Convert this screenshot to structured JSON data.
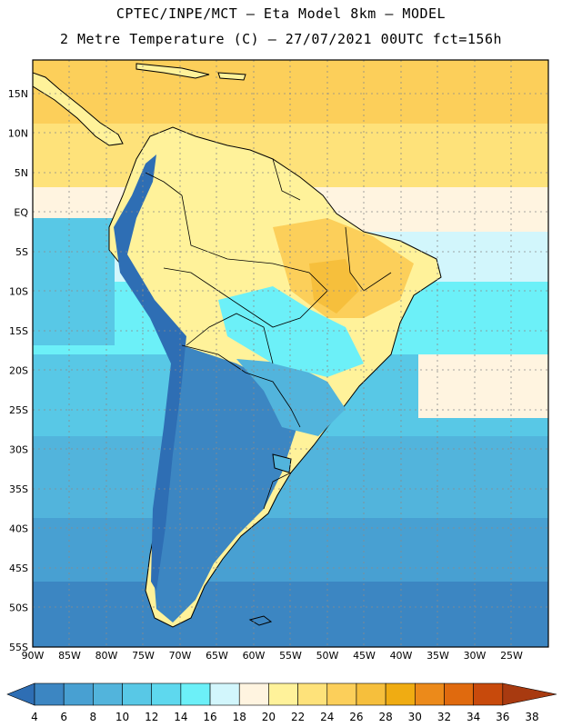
{
  "header": {
    "line1": "CPTEC/INPE/MCT –  Eta Model 8km – MODEL",
    "line2": "2 Metre Temperature (C) – 27/07/2021 00UTC fct=156h"
  },
  "axes": {
    "lat_labels": [
      "15N",
      "10N",
      "5N",
      "EQ",
      "5S",
      "10S",
      "15S",
      "20S",
      "25S",
      "30S",
      "35S",
      "40S",
      "45S",
      "50S",
      "55S"
    ],
    "lon_labels": [
      "90W",
      "85W",
      "80W",
      "75W",
      "70W",
      "65W",
      "60W",
      "55W",
      "50W",
      "45W",
      "40W",
      "35W",
      "30W",
      "25W"
    ]
  },
  "colorbar": {
    "ticks": [
      "4",
      "6",
      "8",
      "10",
      "12",
      "14",
      "16",
      "18",
      "20",
      "22",
      "24",
      "26",
      "28",
      "30",
      "32",
      "34",
      "36",
      "38"
    ],
    "colors": [
      "#2e6eb4",
      "#3c86c2",
      "#48a0d2",
      "#52b4dc",
      "#58c8e6",
      "#5ed8ee",
      "#6cf0f8",
      "#d2f6fc",
      "#fff4e0",
      "#fff29a",
      "#fee27a",
      "#fccf5a",
      "#f6bf3c",
      "#f0ac12",
      "#ec8a1a",
      "#e06a0e",
      "#c84a0c",
      "#a83a10"
    ]
  },
  "map_colors": {
    "ocean_south": "#3c86c2",
    "ocean_mid": "#52b4dc",
    "ocean_warm": "#6cf0f8",
    "ocean_tropic": "#fee27a",
    "andes": "#2e6eb4",
    "patagonia": "#3c86c2",
    "amazon": "#fff29a",
    "brazil_ne": "#fccf5a",
    "coast_line": "#000000",
    "grid": "#8a8a8a"
  }
}
